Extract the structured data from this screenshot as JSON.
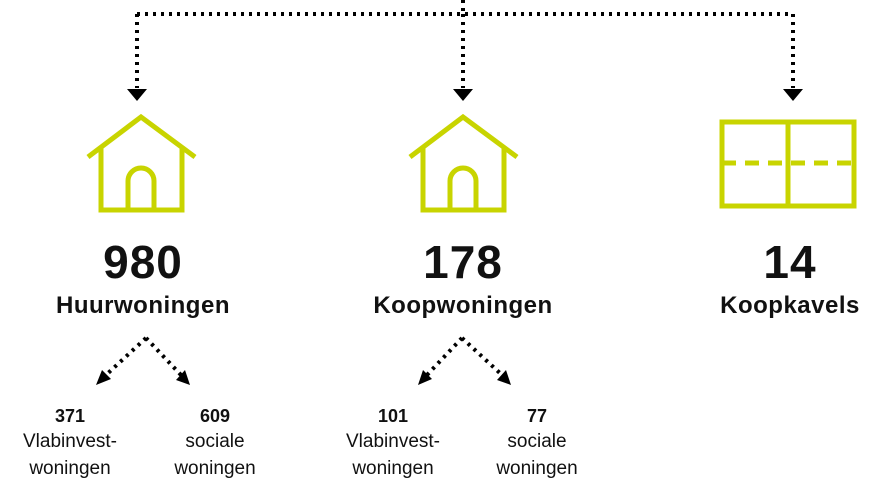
{
  "columns": [
    {
      "number": 980,
      "label": "Huurwoningen",
      "subitems": [
        {
          "number": 371,
          "label_lines": [
            "Vlabinvest-",
            "woningen"
          ]
        },
        {
          "number": 609,
          "label_lines": [
            "sociale",
            "woningen"
          ]
        }
      ]
    },
    {
      "number": 178,
      "label": "Koopwoningen",
      "subitems": [
        {
          "number": 101,
          "label_lines": [
            "Vlabinvest-",
            "woningen"
          ]
        },
        {
          "number": 77,
          "label_lines": [
            "sociale",
            "woningen"
          ]
        }
      ]
    },
    {
      "number": 14,
      "label": "Koopkavels"
    }
  ]
}
